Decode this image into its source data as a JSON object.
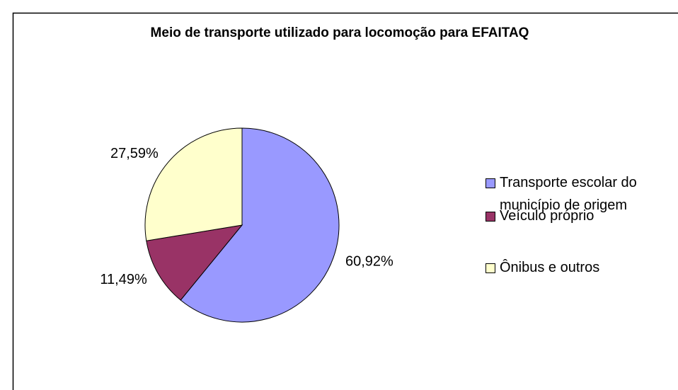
{
  "chart_data": {
    "type": "pie",
    "title": "Meio de transporte utilizado para locomoção para EFAITAQ",
    "categories": [
      "Transporte escolar do município de origem",
      "Veículo próprio",
      "Ônibus e outros"
    ],
    "values": [
      60.92,
      11.49,
      27.59
    ],
    "value_labels": [
      "60,92%",
      "11,49%",
      "27,59%"
    ],
    "colors": [
      "#9999ff",
      "#993366",
      "#ffffcc"
    ],
    "legend": "right"
  }
}
